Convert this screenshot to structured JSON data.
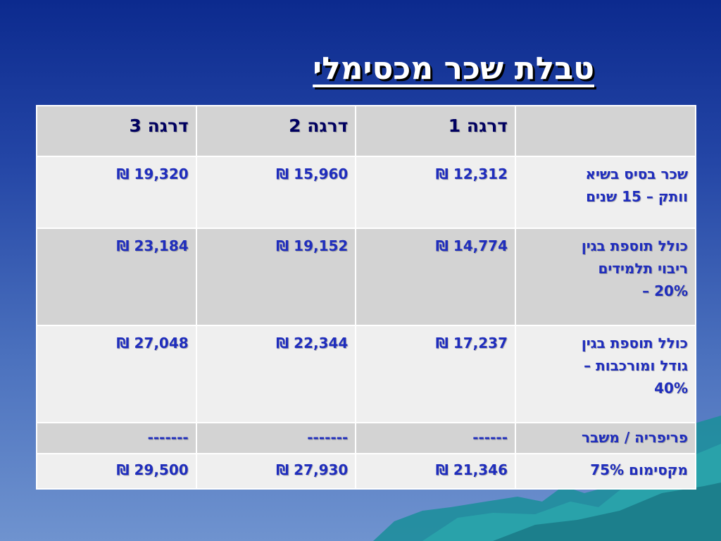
{
  "title": "טבלת שכר מכסימלי",
  "header": [
    "",
    "דרגה 1",
    "דרגה 2",
    "דרגה 3"
  ],
  "rows": [
    {
      "label_lines": [
        "שכר בסיס בשיא",
        "וותק – 15 שנים"
      ],
      "values": [
        "12,312 ₪",
        "15,960 ₪",
        "19,320 ₪"
      ]
    },
    {
      "label_lines": [
        "כולל תוספת בגין",
        "ריבוי תלמידים",
        "20% –"
      ],
      "values": [
        "14,774 ₪",
        "19,152 ₪",
        "23,184 ₪"
      ]
    },
    {
      "label_lines": [
        "כולל תוספת בגין",
        "גודל ומורכבות –",
        "40%"
      ],
      "values": [
        "17,237 ₪",
        "22,344 ₪",
        "27,048 ₪"
      ]
    },
    {
      "label_lines": [
        "פריפריה / משבר"
      ],
      "values": [
        "------",
        "-------",
        "-------"
      ]
    },
    {
      "label_lines": [
        "מקסימום 75%"
      ],
      "values": [
        "21,346 ₪",
        "27,930 ₪",
        "29,500 ₪"
      ]
    }
  ],
  "colors": {
    "text": "#1f2dbd",
    "header_bg": "#d3d3d3",
    "row_light": "#efefef",
    "row_dark": "#d3d3d3"
  }
}
